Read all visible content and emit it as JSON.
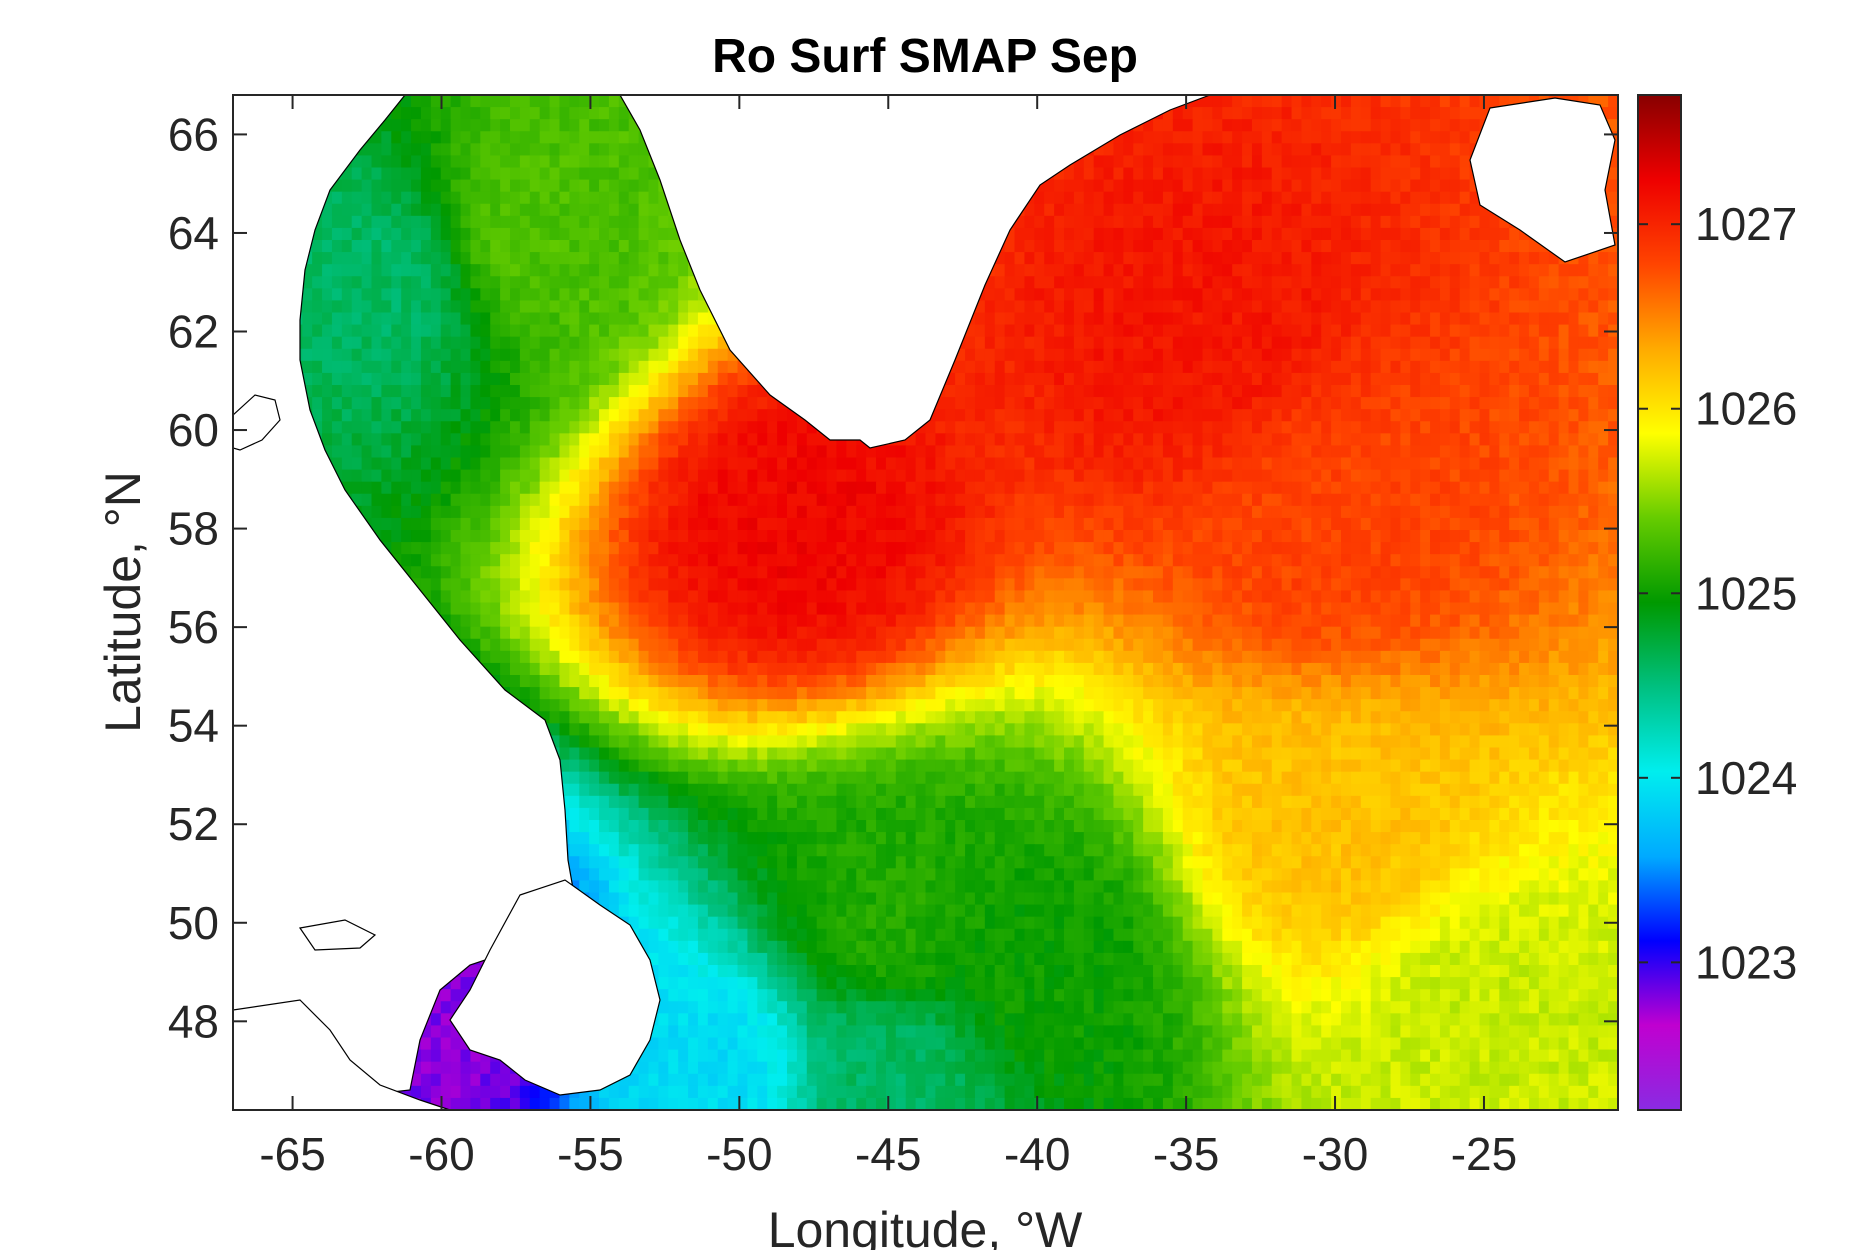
{
  "chart_data": {
    "type": "heatmap",
    "title": "Ro Surf SMAP Sep",
    "xlabel": "Longitude, °W",
    "ylabel": "Latitude, °N",
    "xlim": [
      -67,
      -20.5
    ],
    "ylim": [
      46.2,
      66.8
    ],
    "x_ticks": [
      -65,
      -60,
      -55,
      -50,
      -45,
      -40,
      -35,
      -30,
      -25
    ],
    "y_ticks": [
      48,
      50,
      52,
      54,
      56,
      58,
      60,
      62,
      64,
      66
    ],
    "colorbar": {
      "range": [
        1022.2,
        1027.7
      ],
      "ticks": [
        1023,
        1024,
        1025,
        1026,
        1027
      ],
      "colormap": [
        "#8a2be2",
        "#c000d0",
        "#0000ff",
        "#00aaff",
        "#00eeee",
        "#00c080",
        "#009900",
        "#66cc00",
        "#ffff00",
        "#ffaa00",
        "#ff4400",
        "#ee0000",
        "#880000"
      ]
    },
    "grid": false,
    "field_description_points": [
      {
        "lon": -45,
        "lat": 50,
        "value": 1025.1
      },
      {
        "lon": -40,
        "lat": 49,
        "value": 1025.0
      },
      {
        "lon": -45,
        "lat": 47,
        "value": 1024.6
      },
      {
        "lon": -51,
        "lat": 47,
        "value": 1023.9
      },
      {
        "lon": -60,
        "lat": 48,
        "value": 1022.8
      },
      {
        "lon": -48,
        "lat": 58,
        "value": 1027.2
      },
      {
        "lon": -35,
        "lat": 62,
        "value": 1027.1
      },
      {
        "lon": -30,
        "lat": 58,
        "value": 1026.8
      },
      {
        "lon": -30,
        "lat": 52,
        "value": 1026.2
      },
      {
        "lon": -57,
        "lat": 64,
        "value": 1025.3
      },
      {
        "lon": -62,
        "lat": 63,
        "value": 1024.6
      },
      {
        "lon": -25,
        "lat": 48,
        "value": 1025.7
      }
    ]
  }
}
